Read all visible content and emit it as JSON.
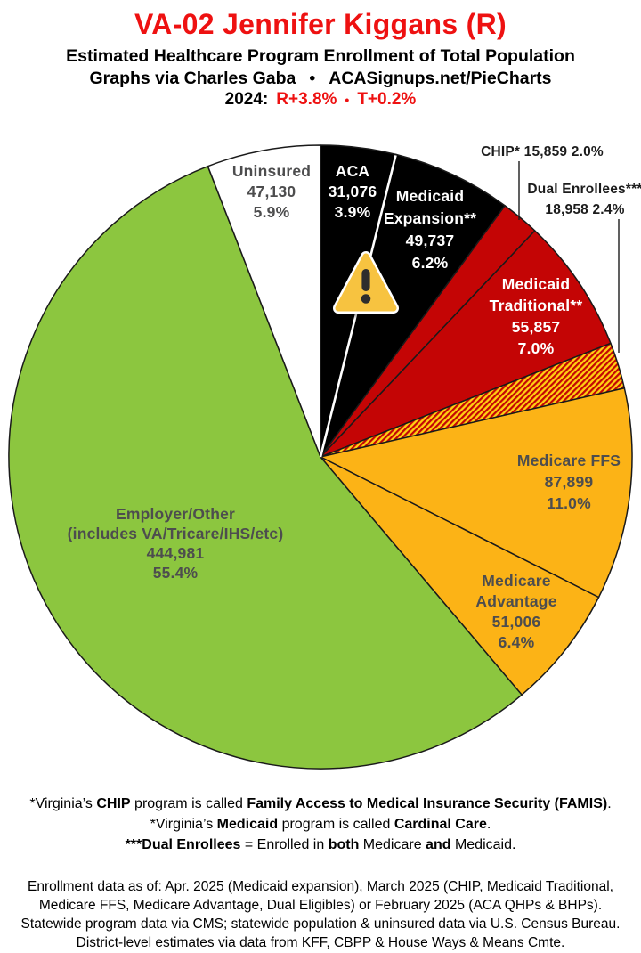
{
  "header": {
    "title": "VA-02 Jennifer Kiggans (R)",
    "subtitle": "Estimated Healthcare Program Enrollment of Total Population",
    "credit_left": "Graphs via Charles Gaba",
    "credit_bullet": "•",
    "credit_right": "ACASignups.net/PieCharts",
    "partisan_prefix": "2024:",
    "partisan_lean": "R+3.8%",
    "partisan_bullet": "•",
    "partisan_trend": "T+0.2%",
    "accent_color": "#ee1111"
  },
  "chart_data": {
    "type": "pie",
    "units": "people",
    "direction": "clockwise",
    "start_angle_deg": 0,
    "colors": {
      "black": "#000000",
      "red": "#C40505",
      "amber": "#FCB316",
      "green": "#8CC63F",
      "white": "#FFFFFF",
      "slice_outline": "#1a1a1a",
      "label_dark": "#4D4D4E",
      "label_light": "#FFFFFF",
      "label_outside": "#1c1c1c"
    },
    "hatch": {
      "base": "#FFD012",
      "stripe": "#C40505"
    },
    "slices": [
      {
        "name": "ACA",
        "value": 31076,
        "pct": 3.9,
        "color": "#000000",
        "label_lines": [
          "ACA",
          "31,076",
          "3.9%"
        ],
        "label_style": "inside-light"
      },
      {
        "name": "Medicaid Expansion**",
        "value": 49737,
        "pct": 6.2,
        "color": "#000000",
        "label_lines": [
          "Medicaid",
          "Expansion**",
          "49,737",
          "6.2%"
        ],
        "label_style": "inside-light"
      },
      {
        "name": "CHIP*",
        "value": 15859,
        "pct": 2.0,
        "color": "#C40505",
        "label_lines": [
          "CHIP* 15,859 2.0%"
        ],
        "label_style": "outside"
      },
      {
        "name": "Medicaid Traditional**",
        "value": 55857,
        "pct": 7.0,
        "color": "#C40505",
        "label_lines": [
          "Medicaid",
          "Traditional**",
          "55,857",
          "7.0%"
        ],
        "label_style": "inside-light"
      },
      {
        "name": "Dual Enrollees***",
        "value": 18958,
        "pct": 2.4,
        "color": "hatch",
        "label_lines": [
          "Dual Enrollees***",
          "18,958 2.4%"
        ],
        "label_style": "outside"
      },
      {
        "name": "Medicare FFS",
        "value": 87899,
        "pct": 11.0,
        "color": "#FCB316",
        "label_lines": [
          "Medicare FFS",
          "87,899",
          "11.0%"
        ],
        "label_style": "inside-dark"
      },
      {
        "name": "Medicare Advantage",
        "value": 51006,
        "pct": 6.4,
        "color": "#FCB316",
        "label_lines": [
          "Medicare",
          "Advantage",
          "51,006",
          "6.4%"
        ],
        "label_style": "inside-dark"
      },
      {
        "name": "Employer/Other",
        "value": 444981,
        "pct": 55.4,
        "color": "#8CC63F",
        "label_lines": [
          "Employer/Other",
          "(includes VA/Tricare/IHS/etc)",
          "444,981",
          "55.4%"
        ],
        "label_style": "inside-dark"
      },
      {
        "name": "Uninsured",
        "value": 47130,
        "pct": 5.9,
        "color": "#FFFFFF",
        "label_lines": [
          "Uninsured",
          "47,130",
          "5.9%"
        ],
        "label_style": "inside-dark"
      }
    ]
  },
  "warning_icon": {
    "glyph": "exclamation-triangle",
    "fill": "#F7C340",
    "mark": "#2D2D2D"
  },
  "footnotes": [
    [
      {
        "t": "*Virginia’s ",
        "b": 0
      },
      {
        "t": "CHIP",
        "b": 1
      },
      {
        "t": " program is called ",
        "b": 0
      },
      {
        "t": "Family Access to Medical Insurance Security (FAMIS)",
        "b": 1
      },
      {
        "t": ".",
        "b": 0
      }
    ],
    [
      {
        "t": "*Virginia’s ",
        "b": 0
      },
      {
        "t": "Medicaid",
        "b": 1
      },
      {
        "t": " program is called ",
        "b": 0
      },
      {
        "t": "Cardinal Care",
        "b": 1
      },
      {
        "t": ".",
        "b": 0
      }
    ],
    [
      {
        "t": "***Dual Enrollees",
        "b": 1
      },
      {
        "t": " = Enrolled in ",
        "b": 0
      },
      {
        "t": "both",
        "b": 1
      },
      {
        "t": " Medicare ",
        "b": 0
      },
      {
        "t": "and",
        "b": 1
      },
      {
        "t": " Medicaid.",
        "b": 0
      }
    ]
  ],
  "source_note": {
    "lines": [
      "Enrollment data as of: Apr. 2025 (Medicaid expansion), March 2025 (CHIP, Medicaid Traditional,",
      "Medicare FFS, Medicare Advantage, Dual Eligibles) or February 2025 (ACA QHPs & BHPs).",
      "Statewide program data via CMS; statewide population & uninsured data via U.S. Census Bureau.",
      "District-level estimates via data from KFF, CBPP & House Ways & Means Cmte."
    ]
  }
}
